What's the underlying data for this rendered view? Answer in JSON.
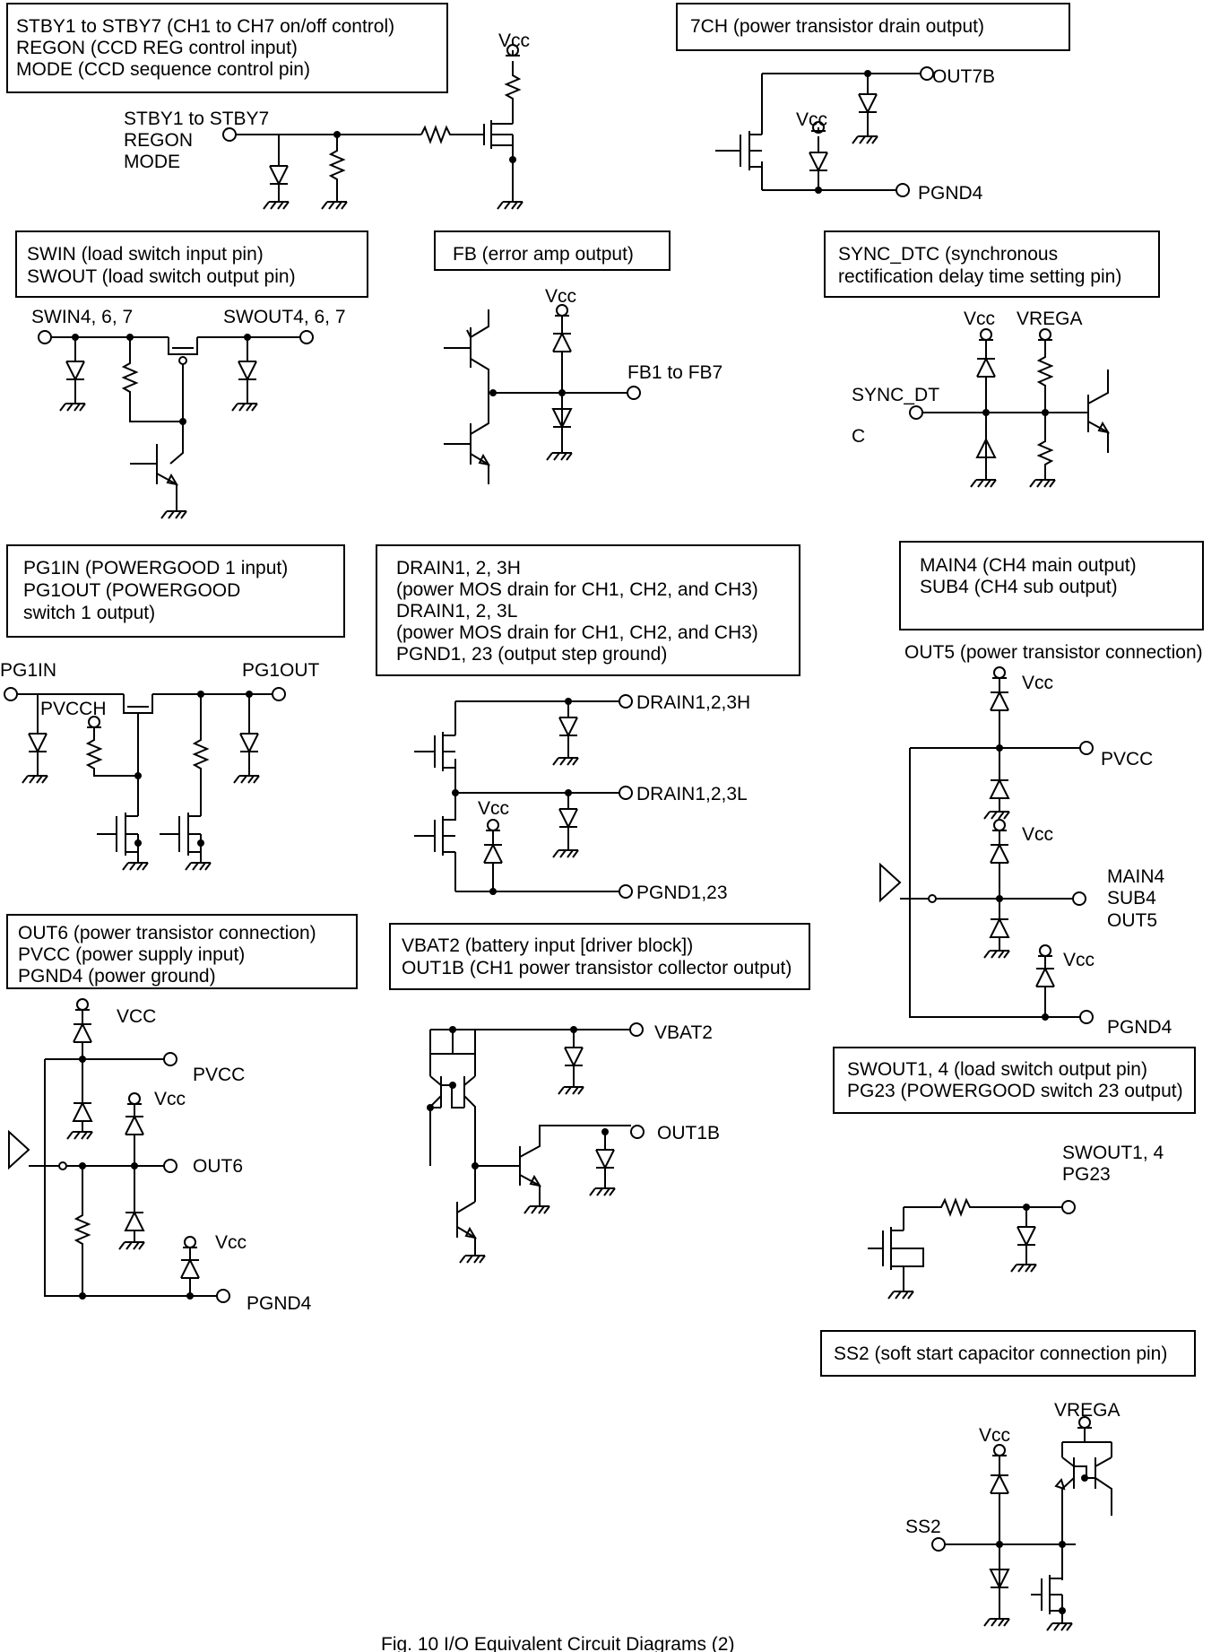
{
  "caption": "Fig. 10 I/O Equivalent Circuit Diagrams (2)",
  "blocks": {
    "stby": {
      "box": [
        "STBY1 to STBY7 (CH1 to CH7 on/off control)",
        "REGON (CCD REG control input)",
        "MODE (CCD sequence control pin)"
      ],
      "pins": [
        "STBY1 to STBY7",
        "REGON",
        "MODE"
      ],
      "vcc": "Vcc"
    },
    "ch7": {
      "box": [
        "7CH (power transistor drain output)"
      ],
      "out": "OUT7B",
      "gnd": "PGND4",
      "vcc": "Vcc"
    },
    "swin": {
      "box": [
        "SWIN (load switch input pin)",
        "SWOUT (load switch output pin)"
      ],
      "in": "SWIN4, 6, 7",
      "out": "SWOUT4, 6, 7"
    },
    "fb": {
      "box": [
        "FB (error amp output)"
      ],
      "vcc": "Vcc",
      "out": "FB1 to FB7"
    },
    "sync": {
      "box": [
        "SYNC_DTC (synchronous",
        "rectification delay time setting pin)"
      ],
      "vcc": "Vcc",
      "vrega": "VREGA",
      "pin_line1": "SYNC_DT",
      "pin_line2": "C"
    },
    "pg1": {
      "box": [
        "PG1IN (POWERGOOD 1 input)",
        "PG1OUT (POWERGOOD",
        "switch 1 output)"
      ],
      "in": "PG1IN",
      "out": "PG1OUT",
      "pvcch": "PVCCH"
    },
    "drain": {
      "box": [
        "DRAIN1, 2, 3H",
        "(power MOS drain for CH1, CH2, and CH3)",
        "DRAIN1, 2, 3L",
        "(power MOS drain for CH1, CH2, and CH3)",
        "PGND1, 23 (output step ground)"
      ],
      "h": "DRAIN1,2,3H",
      "l": "DRAIN1,2,3L",
      "gnd": "PGND1,23",
      "vcc": "Vcc"
    },
    "main4": {
      "box": [
        "MAIN4 (CH4 main output)",
        "SUB4 (CH4 sub output)"
      ],
      "out5_title": "OUT5 (power transistor connection)",
      "vcc": "Vcc",
      "pvcc": "PVCC",
      "pins": [
        "MAIN4",
        "SUB4",
        "OUT5"
      ],
      "gnd": "PGND4"
    },
    "out6": {
      "box": [
        "OUT6 (power transistor connection)",
        "PVCC (power supply input)",
        "PGND4 (power ground)"
      ],
      "vcc_top": "VCC",
      "pvcc": "PVCC",
      "vcc": "Vcc",
      "out": "OUT6",
      "gnd": "PGND4"
    },
    "vbat": {
      "box": [
        "VBAT2 (battery input [driver block])",
        "OUT1B (CH1 power transistor collector output)"
      ],
      "vbat": "VBAT2",
      "out": "OUT1B"
    },
    "swout1": {
      "box": [
        "SWOUT1, 4 (load switch output pin)",
        "PG23 (POWERGOOD switch 23 output)"
      ],
      "pins": [
        "SWOUT1, 4",
        "PG23"
      ]
    },
    "ss2": {
      "box": [
        "SS2 (soft start capacitor connection pin)"
      ],
      "vrega": "VREGA",
      "vcc": "Vcc",
      "pin": "SS2"
    }
  }
}
